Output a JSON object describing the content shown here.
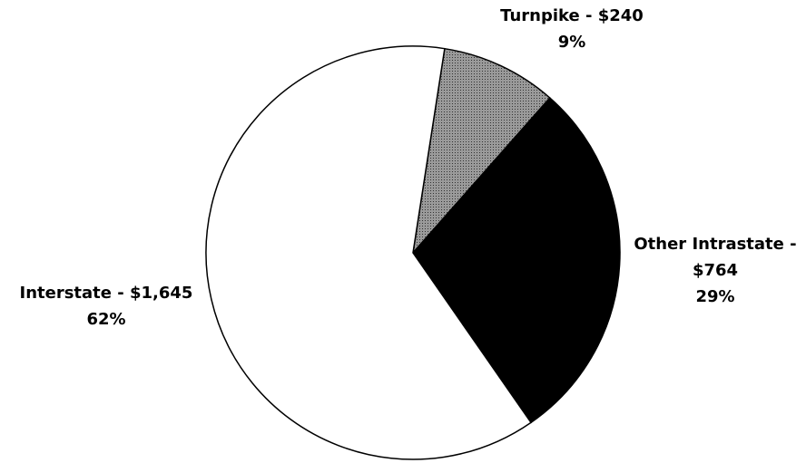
{
  "chart_data": {
    "type": "pie",
    "values": [
      240,
      764,
      1645
    ],
    "value_labels": [
      "Turnpike - $240",
      "Other Intrastate - $764",
      "Interstate - $1,645"
    ],
    "percentages": [
      9,
      29,
      62
    ],
    "percentage_labels": [
      "9%",
      "29%",
      "62%"
    ],
    "colors": [
      "#8a8a8a",
      "#000000",
      "#ffffff"
    ]
  }
}
